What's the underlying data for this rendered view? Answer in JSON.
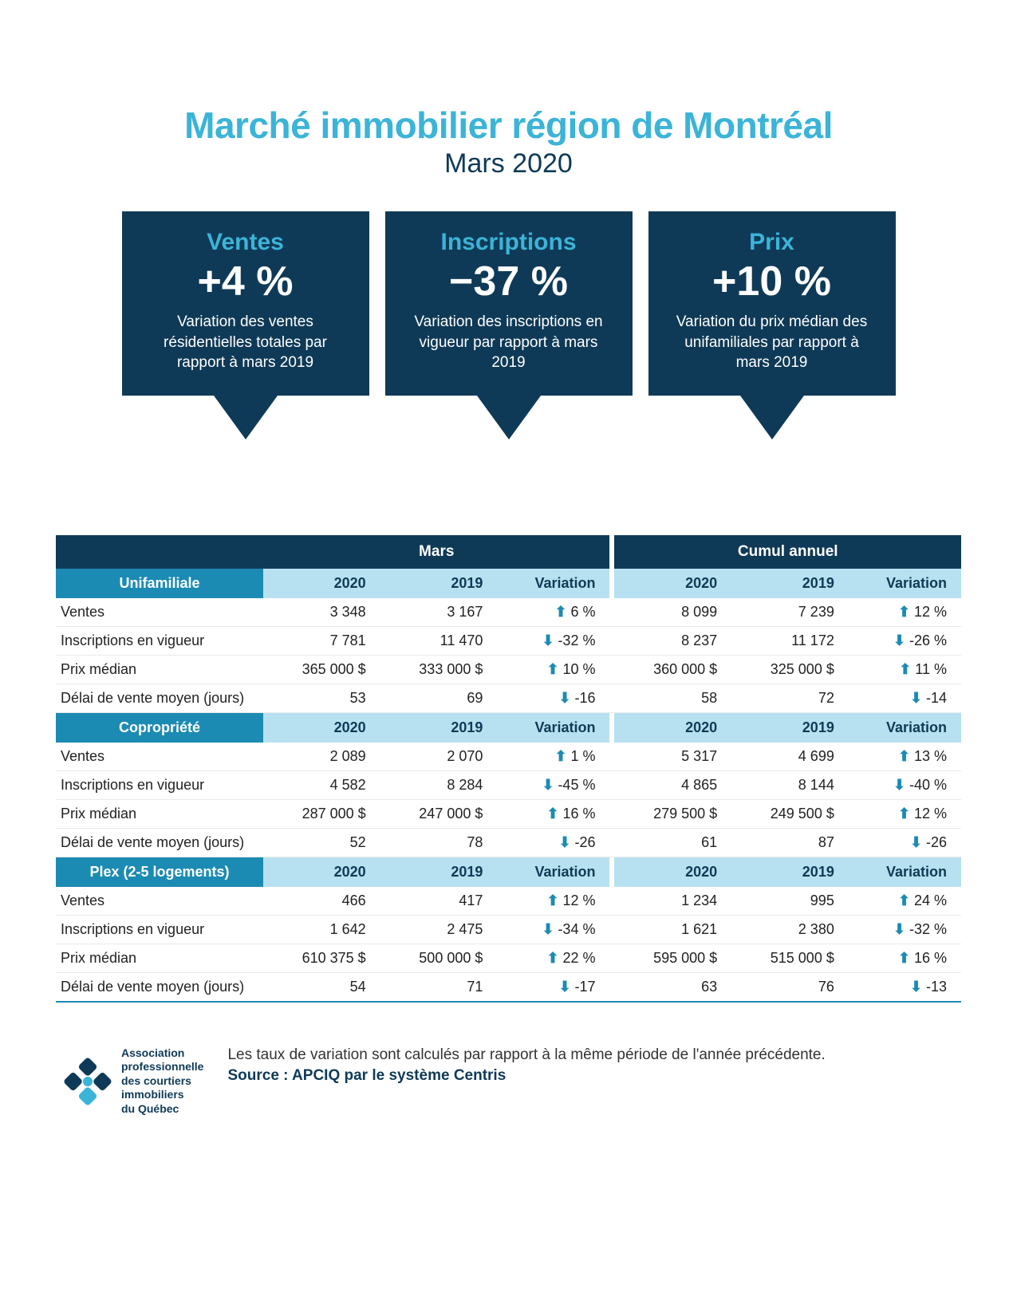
{
  "colors": {
    "accent_cyan": "#3bb4d8",
    "dark_navy": "#0f3a57",
    "section_blue": "#1c8bb3",
    "section_light": "#b7e1f0",
    "row_border": "#e9e9e9",
    "text": "#222222",
    "arrow_indicator": "#1c8bb3"
  },
  "typography": {
    "title_fontsize": 46,
    "subtitle_fontsize": 34,
    "card_title_fontsize": 30,
    "card_value_fontsize": 52,
    "card_desc_fontsize": 19,
    "table_fontsize": 18,
    "footer_fontsize": 19,
    "logo_text_fontsize": 14
  },
  "header": {
    "title": "Marché immobilier région de Montréal",
    "subtitle": "Mars 2020"
  },
  "cards": [
    {
      "title": "Ventes",
      "value": "+4 %",
      "desc": "Variation des ventes résidentielles totales par rapport à mars 2019"
    },
    {
      "title": "Inscriptions",
      "value": "−37 %",
      "desc": "Variation des inscriptions en vigueur par rapport à mars 2019"
    },
    {
      "title": "Prix",
      "value": "+10 %",
      "desc": "Variation du prix médian des unifamiliales par rapport à  mars 2019"
    }
  ],
  "table": {
    "period_headers": [
      "Mars",
      "Cumul annuel"
    ],
    "col_headers": [
      "2020",
      "2019",
      "Variation"
    ],
    "row_labels": [
      "Ventes",
      "Inscriptions en vigueur",
      "Prix médian",
      "Délai de vente moyen (jours)"
    ],
    "sections": [
      {
        "name": "Unifamiliale",
        "mars": {
          "y2020": [
            "3 348",
            "7 781",
            "365 000 $",
            "53"
          ],
          "y2019": [
            "3 167",
            "11 470",
            "333 000 $",
            "69"
          ],
          "var": [
            {
              "dir": "up",
              "val": "6 %"
            },
            {
              "dir": "down",
              "val": "-32 %"
            },
            {
              "dir": "up",
              "val": "10 %"
            },
            {
              "dir": "down",
              "val": "-16"
            }
          ]
        },
        "annuel": {
          "y2020": [
            "8 099",
            "8 237",
            "360 000 $",
            "58"
          ],
          "y2019": [
            "7 239",
            "11 172",
            "325 000 $",
            "72"
          ],
          "var": [
            {
              "dir": "up",
              "val": "12 %"
            },
            {
              "dir": "down",
              "val": "-26 %"
            },
            {
              "dir": "up",
              "val": "11 %"
            },
            {
              "dir": "down",
              "val": "-14"
            }
          ]
        }
      },
      {
        "name": "Copropriété",
        "mars": {
          "y2020": [
            "2 089",
            "4 582",
            "287 000 $",
            "52"
          ],
          "y2019": [
            "2 070",
            "8 284",
            "247 000 $",
            "78"
          ],
          "var": [
            {
              "dir": "up",
              "val": "1 %"
            },
            {
              "dir": "down",
              "val": "-45 %"
            },
            {
              "dir": "up",
              "val": "16 %"
            },
            {
              "dir": "down",
              "val": "-26"
            }
          ]
        },
        "annuel": {
          "y2020": [
            "5 317",
            "4 865",
            "279 500 $",
            "61"
          ],
          "y2019": [
            "4 699",
            "8 144",
            "249 500 $",
            "87"
          ],
          "var": [
            {
              "dir": "up",
              "val": "13 %"
            },
            {
              "dir": "down",
              "val": "-40 %"
            },
            {
              "dir": "up",
              "val": "12 %"
            },
            {
              "dir": "down",
              "val": "-26"
            }
          ]
        }
      },
      {
        "name": "Plex (2-5 logements)",
        "mars": {
          "y2020": [
            "466",
            "1 642",
            "610 375 $",
            "54"
          ],
          "y2019": [
            "417",
            "2 475",
            "500 000 $",
            "71"
          ],
          "var": [
            {
              "dir": "up",
              "val": "12 %"
            },
            {
              "dir": "down",
              "val": "-34 %"
            },
            {
              "dir": "up",
              "val": "22 %"
            },
            {
              "dir": "down",
              "val": "-17"
            }
          ]
        },
        "annuel": {
          "y2020": [
            "1 234",
            "1 621",
            "595 000 $",
            "63"
          ],
          "y2019": [
            "995",
            "2 380",
            "515 000 $",
            "76"
          ],
          "var": [
            {
              "dir": "up",
              "val": "24 %"
            },
            {
              "dir": "down",
              "val": "-32 %"
            },
            {
              "dir": "up",
              "val": "16 %"
            },
            {
              "dir": "down",
              "val": "-13"
            }
          ]
        }
      }
    ]
  },
  "footer": {
    "logo_text": "Association professionnelle des courtiers immobiliers du Québec",
    "note": "Les taux de variation sont calculés par rapport à la même période de l'année précédente.",
    "source": "Source : APCIQ par le système Centris"
  }
}
